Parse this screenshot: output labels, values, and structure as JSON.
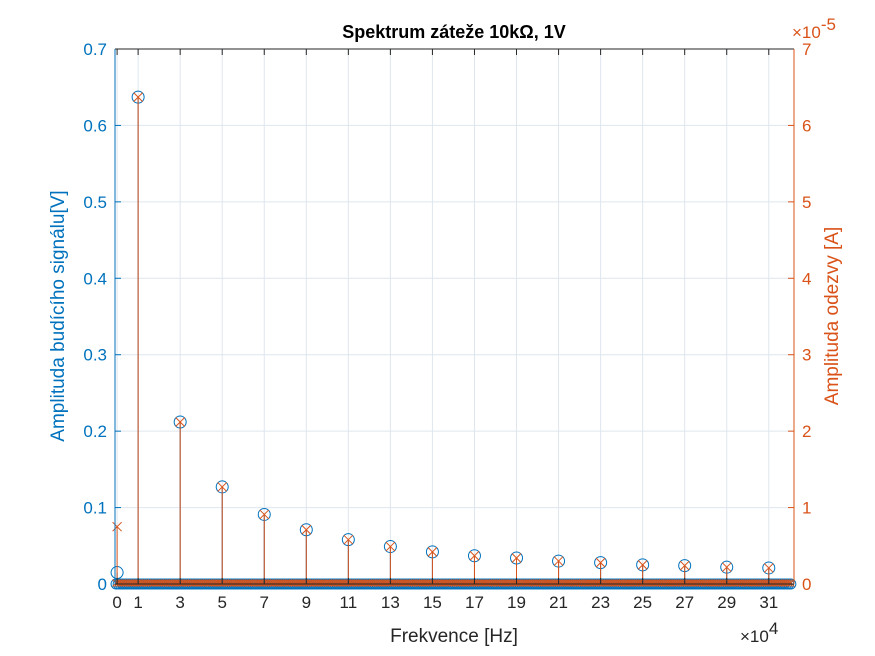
{
  "chart_data": {
    "type": "stem",
    "title": "Spektrum záteže 10kΩ, 1V",
    "xlabel": "Frekvence [Hz]",
    "ylabel_left": "Amplituda budícího signálu[V]",
    "ylabel_right": "Amplituda odezvy [A]",
    "x_multiplier_text": "×10",
    "x_multiplier_exp": "4",
    "right_multiplier_text": "×10",
    "right_multiplier_exp": "-5",
    "x_scale": 10000,
    "right_scale": 1e-05,
    "xlim": [
      -0.1,
      32.2
    ],
    "ylim_left": [
      0,
      0.7
    ],
    "ylim_right": [
      0,
      7
    ],
    "x_ticks": [
      "0",
      "1",
      "3",
      "5",
      "7",
      "9",
      "11",
      "13",
      "15",
      "17",
      "19",
      "21",
      "23",
      "25",
      "27",
      "29",
      "31"
    ],
    "y_ticks_left": [
      "0",
      "0.1",
      "0.2",
      "0.3",
      "0.4",
      "0.5",
      "0.6",
      "0.7"
    ],
    "y_ticks_right": [
      "0",
      "1",
      "2",
      "3",
      "4",
      "5",
      "6",
      "7"
    ],
    "grid": true,
    "colors": {
      "left": "#0072BD",
      "right": "#D95319",
      "grid": "#dfe6ee",
      "axis": "#262626"
    },
    "series": [
      {
        "axis": "left",
        "marker": "circle",
        "x": [
          0,
          1,
          3,
          5,
          7,
          9,
          11,
          13,
          15,
          17,
          19,
          21,
          23,
          25,
          27,
          29,
          31
        ],
        "values": [
          0.015,
          0.637,
          0.212,
          0.127,
          0.091,
          0.071,
          0.058,
          0.049,
          0.042,
          0.037,
          0.034,
          0.03,
          0.028,
          0.025,
          0.024,
          0.022,
          0.021
        ]
      },
      {
        "axis": "right",
        "marker": "x",
        "x": [
          0,
          1,
          3,
          5,
          7,
          9,
          11,
          13,
          15,
          17,
          19,
          21,
          23,
          25,
          27,
          29,
          31
        ],
        "values": [
          0.75,
          6.37,
          2.12,
          1.27,
          0.91,
          0.71,
          0.58,
          0.49,
          0.42,
          0.37,
          0.34,
          0.3,
          0.28,
          0.25,
          0.24,
          0.22,
          0.21
        ]
      }
    ],
    "baseline_step": 0.1
  }
}
